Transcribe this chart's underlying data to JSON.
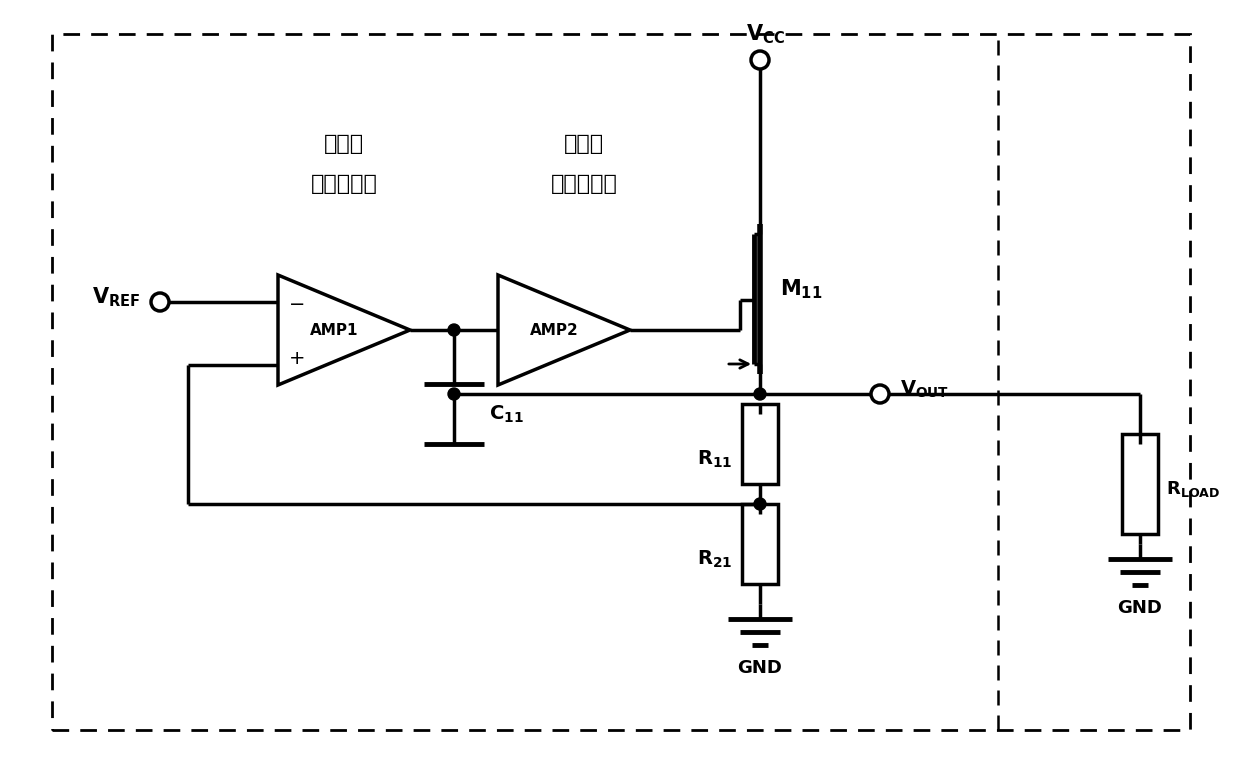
{
  "bg_color": "#ffffff",
  "lw": 2.5,
  "chinese_label1_line1": "第一级",
  "chinese_label1_line2": "误差放大器",
  "chinese_label2_line1": "第二级",
  "chinese_label2_line2": "误差放大器",
  "amp1_label": "AMP1",
  "amp2_label": "AMP2",
  "gnd_label": "GND"
}
